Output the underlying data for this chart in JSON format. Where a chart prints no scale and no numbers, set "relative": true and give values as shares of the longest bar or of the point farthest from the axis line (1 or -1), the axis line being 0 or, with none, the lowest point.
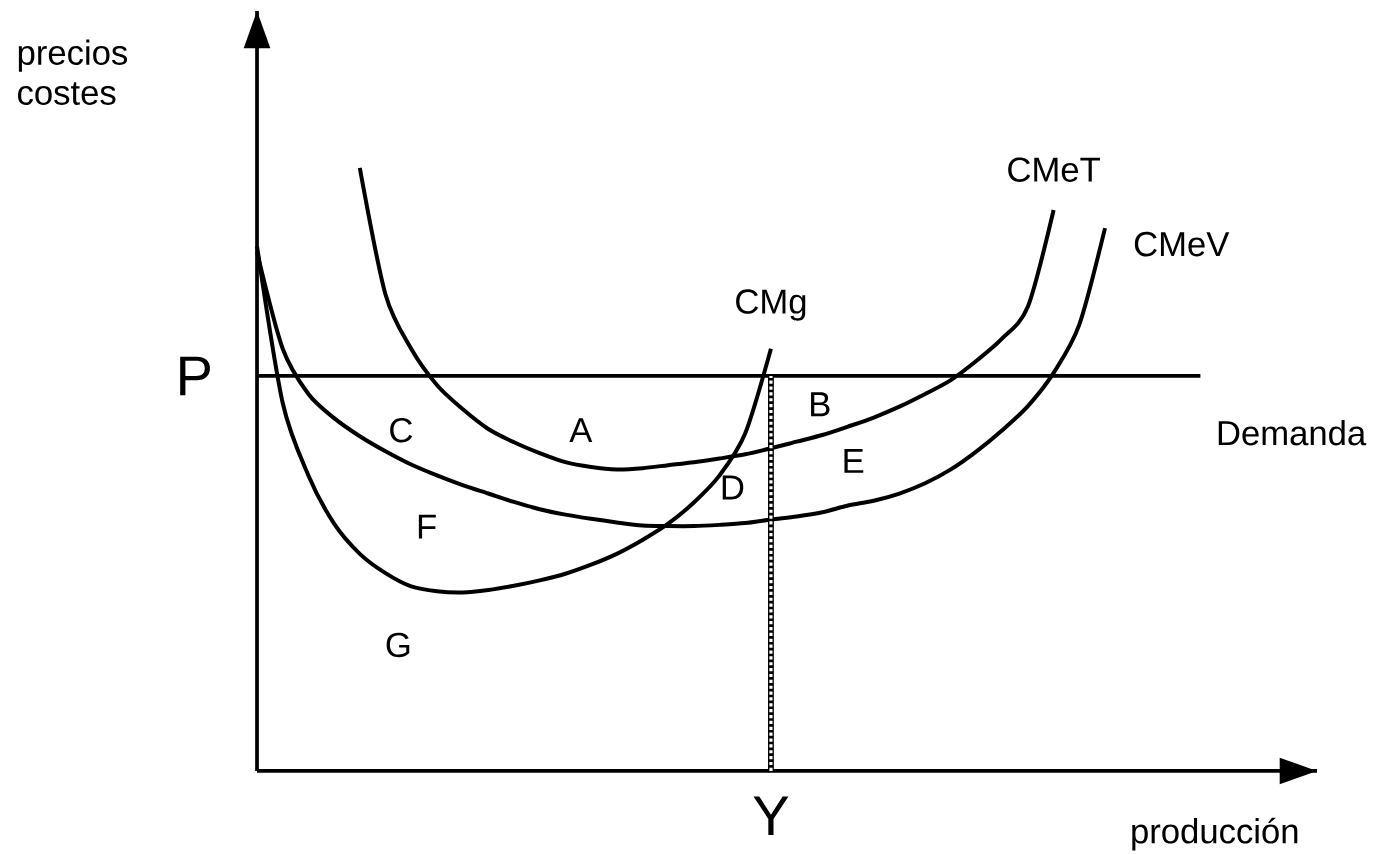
{
  "chart_data": {
    "type": "line",
    "relative": true,
    "xlabel": "producción",
    "ylabel": "precios costes",
    "categories": [
      null,
      null,
      null,
      null,
      null,
      null,
      null,
      null,
      null,
      null,
      null,
      null,
      null,
      null,
      null,
      null,
      null,
      null,
      null,
      null,
      null,
      null,
      null,
      null,
      null,
      null,
      null,
      null,
      null,
      null,
      null,
      null,
      null,
      null
    ],
    "series": [
      {
        "name": "CMeT",
        "color": "#000000",
        "values": [
          null,
          null,
          null,
          null,
          1.0,
          0.79,
          0.7,
          0.64,
          0.6,
          0.567,
          0.545,
          0.527,
          0.512,
          0.504,
          0.5,
          0.502,
          0.507,
          0.512,
          0.518,
          0.525,
          0.535,
          0.546,
          0.557,
          0.571,
          0.586,
          0.604,
          0.625,
          0.648,
          0.68,
          0.717,
          0.77,
          0.93,
          null,
          null
        ]
      },
      {
        "name": "CMeV",
        "color": "#000000",
        "values": [
          0.86,
          0.7,
          0.625,
          0.585,
          0.555,
          0.53,
          0.508,
          0.49,
          0.474,
          0.46,
          0.446,
          0.434,
          0.425,
          0.418,
          0.412,
          0.407,
          0.406,
          0.406,
          0.408,
          0.411,
          0.417,
          0.422,
          0.429,
          0.44,
          0.448,
          0.46,
          0.477,
          0.5,
          0.53,
          0.565,
          0.605,
          0.66,
          0.74,
          0.9
        ]
      },
      {
        "name": "CMg",
        "color": "#000000",
        "values": [
          0.87,
          0.61,
          0.49,
          0.41,
          0.36,
          0.328,
          0.306,
          0.298,
          0.296,
          0.3,
          0.307,
          0.316,
          0.327,
          0.342,
          0.36,
          0.383,
          0.41,
          0.445,
          0.49,
          0.56,
          0.7,
          null,
          null,
          null,
          null,
          null,
          null,
          null,
          null,
          null,
          null,
          null,
          null,
          null
        ]
      }
    ],
    "ref_lines": [
      {
        "axis": "y",
        "value": 0.655,
        "label": "Demanda"
      }
    ],
    "annotations": [
      "P",
      "A",
      "B",
      "C",
      "D",
      "E",
      "F",
      "G",
      "Y"
    ]
  }
}
